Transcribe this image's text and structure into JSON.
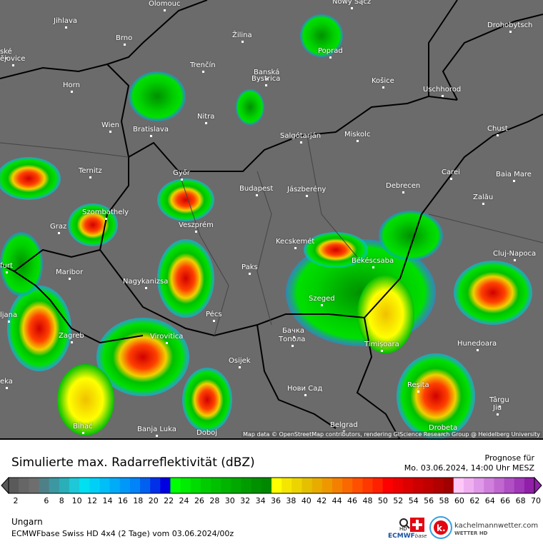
{
  "map": {
    "attribution": "Map data © OpenStreetMap contributors, rendering GIScience Research Group @ Heidelberg University",
    "cities": [
      "Olomouc",
      "Nowy Sącz",
      "Jihlava",
      "Brno",
      "Žilina",
      "Poprad",
      "Drohobytsch",
      "ské",
      "ějovice",
      "Trenčín",
      "Banská",
      "Bystrica",
      "Košice",
      "Horn",
      "Uschhorod",
      "Nitra",
      "Wien",
      "Bratislava",
      "Chust",
      "Salgótarján",
      "Miskolc",
      "Ternitz",
      "Győr",
      "Carei",
      "Baia Mare",
      "Budapest",
      "Jászberény",
      "Debrecen",
      "Zalău",
      "Szombathely",
      "Graz",
      "Veszprém",
      "Kecskemét",
      "Cluj-Napoca",
      "Békéscsaba",
      "Paks",
      "furt",
      "Maribor",
      "Nagykanizsa",
      "Szeged",
      "Pécs",
      "ljana",
      "Zagreb",
      "Virovitica",
      "Бачка",
      "Топола",
      "Timișoara",
      "Hunedoara",
      "Osijek",
      "Нови Сад",
      "Reșița",
      "eka",
      "Târgu",
      "Jiu",
      "Bihać",
      "Banja Luka",
      "Doboj",
      "Belgrad",
      "Drobeta"
    ]
  },
  "legend": {
    "title": "Simulierte max. Radarreflektivität (dBZ)",
    "forecast_label": "Prognose für",
    "forecast_time": "Mo. 03.06.2024, 14:00 Uhr MESZ",
    "unit": "dBZ",
    "ticks": [
      2,
      6,
      8,
      10,
      12,
      14,
      16,
      18,
      20,
      22,
      24,
      26,
      28,
      30,
      32,
      34,
      36,
      38,
      40,
      42,
      44,
      46,
      48,
      50,
      52,
      54,
      56,
      58,
      60,
      62,
      64,
      66,
      68,
      70
    ],
    "colors": [
      "#5a5a5a",
      "#666666",
      "#6e6e6e",
      "#4f8088",
      "#3c97a0",
      "#2aaeb8",
      "#1ec8d8",
      "#00e0f0",
      "#00d0f8",
      "#00bef8",
      "#00acf8",
      "#0098f8",
      "#0084f8",
      "#0060f0",
      "#0030e8",
      "#0000e0",
      "#00ff00",
      "#00ec00",
      "#00dc00",
      "#00cc00",
      "#00c000",
      "#00b400",
      "#00a800",
      "#009c00",
      "#009000",
      "#008800",
      "#ffff00",
      "#f4e600",
      "#ecd400",
      "#e4c000",
      "#e8ac00",
      "#ee9800",
      "#f48000",
      "#fa6800",
      "#ff5000",
      "#ff3800",
      "#ff2000",
      "#ff0000",
      "#ec0000",
      "#dc0000",
      "#cc0000",
      "#c00000",
      "#b00000",
      "#a00000",
      "#ffc8f8",
      "#f0b0f0",
      "#e098e8",
      "#d080dc",
      "#c068d0",
      "#b050c4",
      "#a038b8",
      "#9020a8"
    ],
    "region": "Ungarn",
    "model": "ECMWFbase Swiss HD 4x4 (2 Tage) vom 03.06.2024/00z"
  },
  "logos": {
    "swiss": "swiss",
    "hd": "HD",
    "ecmwf": "ECMWF",
    "base": "base",
    "site": "kachelmannwetter.com",
    "site_sub": "WETTER HD",
    "k": "k."
  }
}
